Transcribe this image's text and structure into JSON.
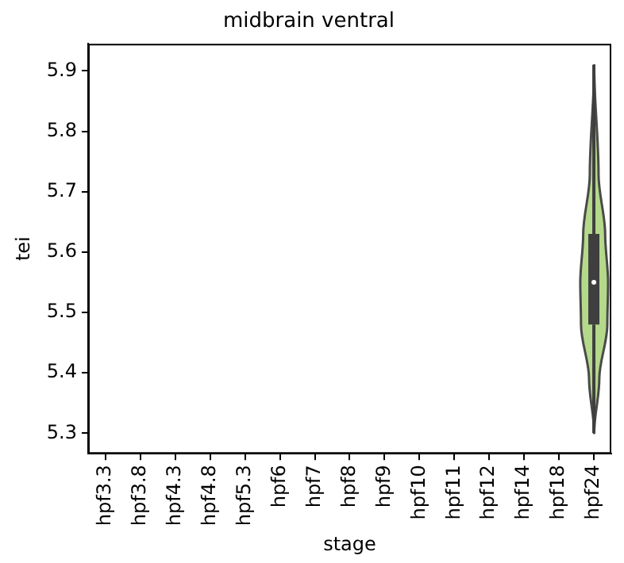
{
  "chart_data": {
    "type": "box",
    "title": "midbrain ventral",
    "xlabel": "stage",
    "ylabel": "tei",
    "categories": [
      "hpf3.3",
      "hpf3.8",
      "hpf4.3",
      "hpf4.8",
      "hpf5.3",
      "hpf6",
      "hpf7",
      "hpf8",
      "hpf9",
      "hpf10",
      "hpf11",
      "hpf12",
      "hpf14",
      "hpf18",
      "hpf24"
    ],
    "color": "#3f3f3f",
    "boxes": [
      null,
      null,
      null,
      null,
      null,
      null,
      null,
      null,
      null,
      null,
      null,
      null,
      null,
      null,
      {
        "low": 5.3,
        "q1": 5.48,
        "median": 5.55,
        "q3": 5.63,
        "high": 5.91
      }
    ],
    "ylim": [
      5.266,
      5.945
    ],
    "yticks": [
      5.3,
      5.4,
      5.5,
      5.6,
      5.7,
      5.8,
      5.9
    ],
    "grid": false,
    "legend": false
  }
}
